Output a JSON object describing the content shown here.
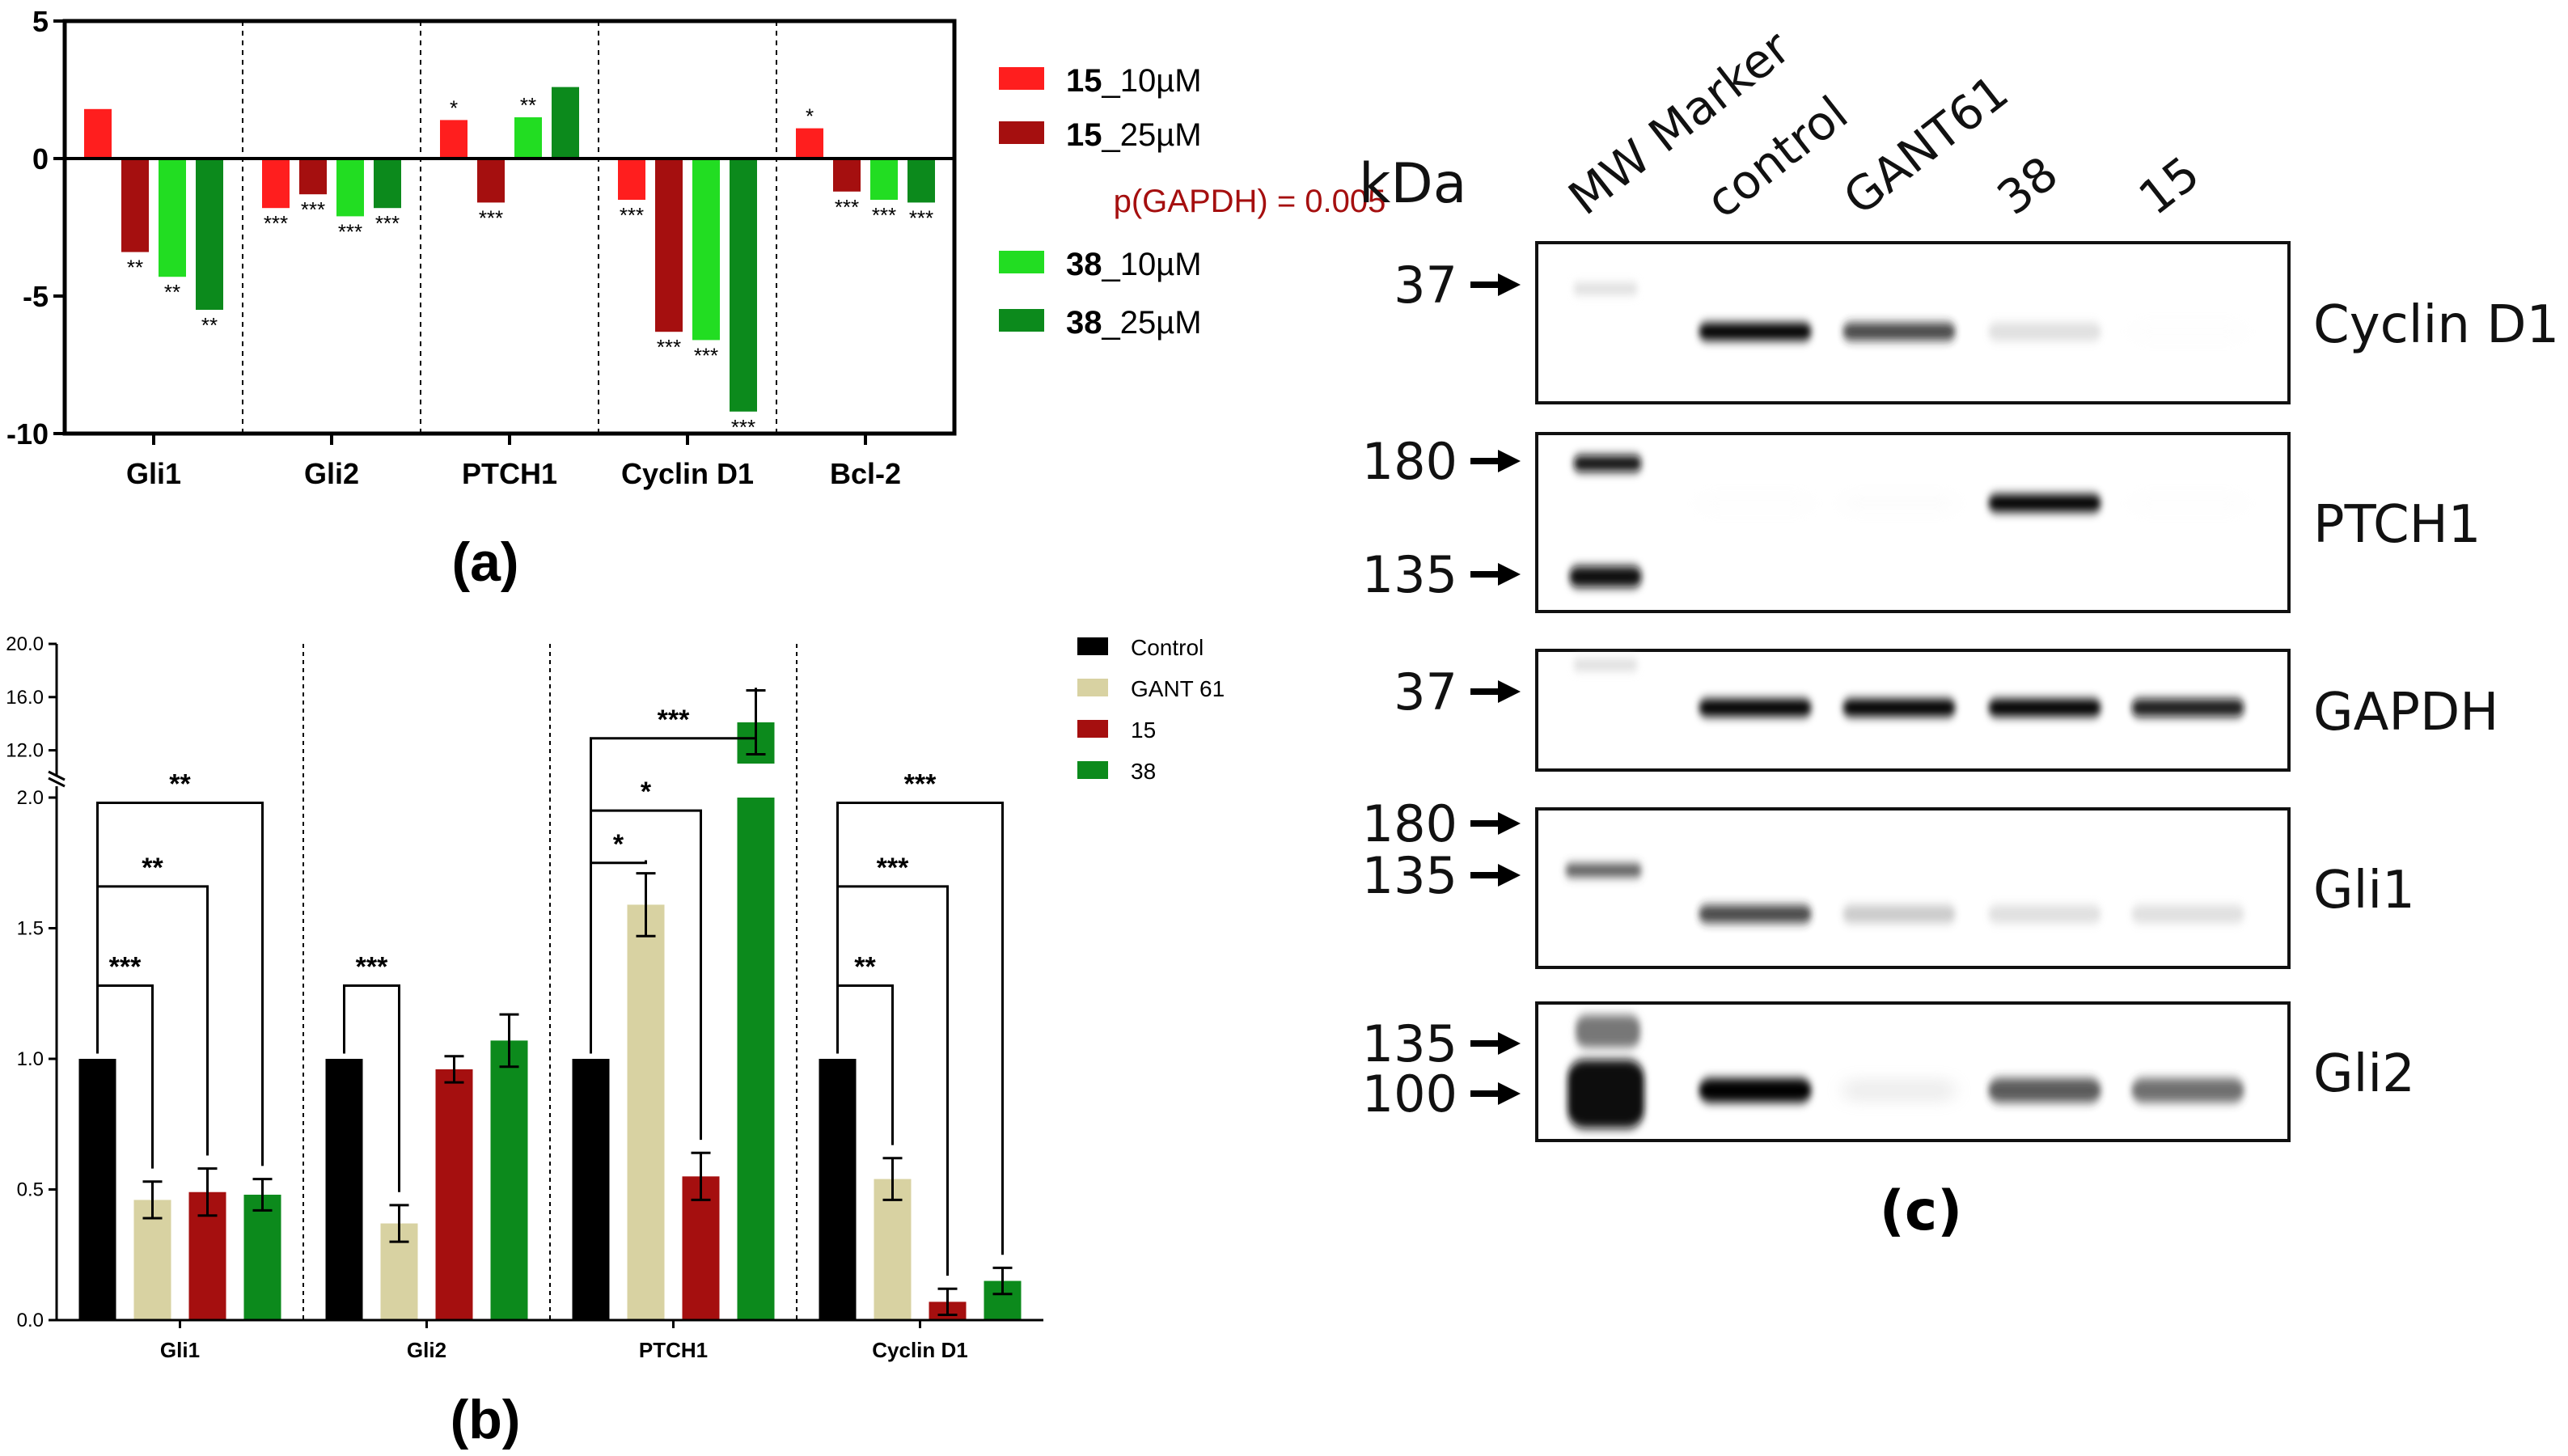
{
  "panel_labels": {
    "a": "(a)",
    "b": "(b)",
    "c": "(c)"
  },
  "chart_data": [
    {
      "panel": "(a)",
      "type": "bar",
      "categories": [
        "Gli1",
        "Gli2",
        "PTCH1",
        "Cyclin D1",
        "Bcl-2"
      ],
      "ylim": [
        -10,
        5
      ],
      "yticks": [
        5,
        0,
        -5,
        -10
      ],
      "ytick_labels": [
        "5",
        "0",
        "-5",
        "-10"
      ],
      "grid": false,
      "legend_position": "right",
      "annotation": "p(GAPDH) = 0.005",
      "series": [
        {
          "name": "15_10µM",
          "name_bold": "15",
          "name_rest": "_10µM",
          "color": "#ff1e1e",
          "values": [
            1.8,
            -1.8,
            1.4,
            -1.5,
            1.1
          ],
          "sig": [
            "",
            "***",
            "*",
            "***",
            "*"
          ]
        },
        {
          "name": "15_25µM",
          "name_bold": "15",
          "name_rest": "_25µM",
          "color": "#a50f0f",
          "values": [
            -3.4,
            -1.3,
            -1.6,
            -6.3,
            -1.2
          ],
          "sig": [
            "**",
            "***",
            "***",
            "***",
            "***"
          ]
        },
        {
          "name": "38_10µM",
          "name_bold": "38",
          "name_rest": "_10µM",
          "color": "#22dd22",
          "values": [
            -4.3,
            -2.1,
            1.5,
            -6.6,
            -1.5
          ],
          "sig": [
            "**",
            "***",
            "**",
            "***",
            "***"
          ]
        },
        {
          "name": "38_25µM",
          "name_bold": "38",
          "name_rest": "_25µM",
          "color": "#0c8a1c",
          "values": [
            -5.5,
            -1.8,
            2.6,
            -9.2,
            -1.6
          ],
          "sig": [
            "**",
            "***",
            "",
            "***",
            "***"
          ]
        }
      ]
    },
    {
      "panel": "(b)",
      "type": "bar",
      "categories": [
        "Gli1",
        "Gli2",
        "PTCH1",
        "Cyclin D1"
      ],
      "lower_ylim": [
        0,
        2.0
      ],
      "upper_ylim": [
        11.0,
        20.0
      ],
      "yticks_lower": [
        "0.0",
        "0.5",
        "1.0",
        "1.5",
        "2.0"
      ],
      "yticks_upper": [
        "12.0",
        "16.0",
        "20.0"
      ],
      "broken_axis": true,
      "grid": false,
      "legend_position": "top-right",
      "series": [
        {
          "name": "Control",
          "color": "#000000",
          "values": [
            1.0,
            1.0,
            1.0,
            1.0
          ],
          "errors": [
            0,
            0,
            0,
            0
          ]
        },
        {
          "name": "GANT 61",
          "color": "#d8d2a2",
          "values": [
            0.46,
            0.37,
            1.59,
            0.54
          ],
          "errors": [
            0.07,
            0.07,
            0.12,
            0.08
          ]
        },
        {
          "name": "15",
          "color": "#a50f0f",
          "values": [
            0.49,
            0.96,
            0.55,
            0.07
          ],
          "errors": [
            0.09,
            0.05,
            0.09,
            0.05
          ]
        },
        {
          "name": "38",
          "color": "#0c8a1c",
          "values": [
            0.48,
            1.07,
            14.1,
            0.15
          ],
          "errors": [
            0.06,
            0.1,
            2.4,
            0.05
          ]
        }
      ],
      "comparisons": [
        {
          "category": 0,
          "pairs": [
            [
              0,
              1,
              "***"
            ],
            [
              0,
              2,
              "**"
            ],
            [
              0,
              3,
              "**"
            ]
          ]
        },
        {
          "category": 1,
          "pairs": [
            [
              0,
              1,
              "***"
            ]
          ]
        },
        {
          "category": 2,
          "pairs": [
            [
              0,
              1,
              "*"
            ],
            [
              0,
              2,
              "*"
            ],
            [
              0,
              3,
              "***"
            ]
          ]
        },
        {
          "category": 3,
          "pairs": [
            [
              0,
              1,
              "**"
            ],
            [
              0,
              2,
              "***"
            ],
            [
              0,
              3,
              "***"
            ]
          ]
        }
      ]
    }
  ],
  "western_blot": {
    "unit_label": "kDa",
    "lanes": [
      "MW Marker",
      "control",
      "GANT61",
      "38",
      "15"
    ],
    "blots": [
      {
        "name": "Cyclin D1",
        "markers": [
          "37"
        ],
        "bands": [
          0,
          1.0,
          0.85,
          0.35,
          0.05
        ]
      },
      {
        "name": "PTCH1",
        "markers": [
          "180",
          "135"
        ],
        "bands": [
          0,
          0.05,
          0.08,
          1.0,
          0.05
        ]
      },
      {
        "name": "GAPDH",
        "markers": [
          "37"
        ],
        "bands": [
          0,
          1.0,
          1.0,
          1.0,
          0.95
        ]
      },
      {
        "name": "Gli1",
        "markers": [
          "180",
          "135"
        ],
        "bands": [
          0,
          0.85,
          0.45,
          0.35,
          0.35
        ]
      },
      {
        "name": "Gli2",
        "markers": [
          "135",
          "100"
        ],
        "bands": [
          0,
          1.0,
          0.25,
          0.8,
          0.75
        ]
      }
    ]
  }
}
